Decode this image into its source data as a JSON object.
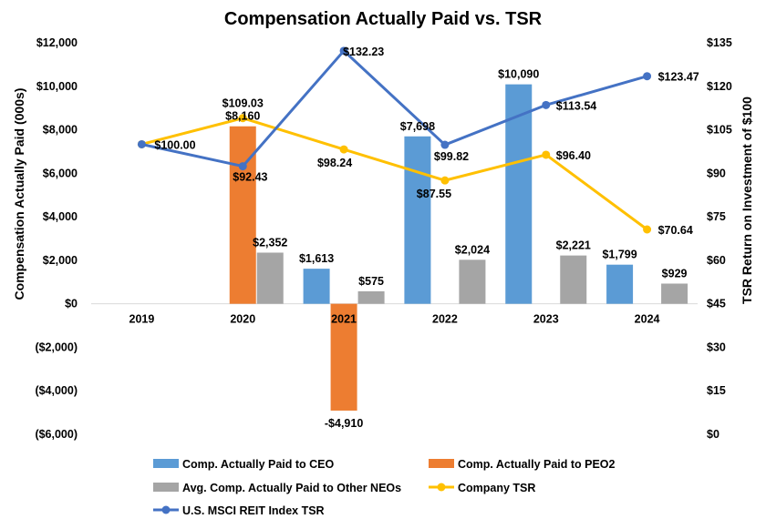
{
  "chart_data": {
    "type": "bar",
    "title": "Compensation Actually Paid vs. TSR",
    "categories": [
      "2019",
      "2020",
      "2021",
      "2022",
      "2023",
      "2024"
    ],
    "ylabel": "Compensation Actually Paid (000s)",
    "y2label": "TSR Return on Investment of $100",
    "ylim": [
      -6000,
      12000
    ],
    "y2lim": [
      0,
      135
    ],
    "y_ticks": [
      "$12,000",
      "$10,000",
      "$8,000",
      "$6,000",
      "$4,000",
      "$2,000",
      "$0",
      "($2,000)",
      "($4,000)",
      "($6,000)"
    ],
    "y2_ticks": [
      "$135",
      "$120",
      "$105",
      "$90",
      "$75",
      "$60",
      "$45",
      "$30",
      "$15",
      "$0"
    ],
    "bar_series": [
      {
        "name": "Comp. Actually Paid to CEO",
        "color": "#5b9bd5",
        "values": [
          null,
          null,
          1613,
          7698,
          10090,
          1799
        ],
        "labels": [
          null,
          null,
          "$1,613",
          "$7,698",
          "$10,090",
          "$1,799"
        ]
      },
      {
        "name": "Comp. Actually Paid to PEO2",
        "color": "#ed7d31",
        "values": [
          null,
          8160,
          -4910,
          null,
          null,
          null
        ],
        "labels": [
          null,
          "$8,160",
          "-$4,910",
          null,
          null,
          null
        ]
      },
      {
        "name": "Avg. Comp. Actually Paid to Other NEOs",
        "color": "#a5a5a5",
        "values": [
          null,
          2352,
          575,
          2024,
          2221,
          929
        ],
        "labels": [
          null,
          "$2,352",
          "$575",
          "$2,024",
          "$2,221",
          "$929"
        ]
      }
    ],
    "line_series": [
      {
        "name": "Company TSR",
        "color": "#ffc000",
        "values": [
          100.0,
          109.03,
          98.24,
          87.55,
          96.4,
          70.64
        ],
        "labels": [
          "$100.00",
          "$109.03",
          "$98.24",
          "$87.55",
          "$96.40",
          "$70.64"
        ]
      },
      {
        "name": "U.S. MSCI REIT Index TSR",
        "color": "#4472c4",
        "values": [
          100.0,
          92.43,
          132.23,
          99.82,
          113.54,
          123.47
        ],
        "labels": [
          null,
          "$92.43",
          "$132.23",
          "$99.82",
          "$113.54",
          "$123.47"
        ]
      }
    ],
    "legend": [
      {
        "name": "Comp. Actually Paid to CEO",
        "kind": "bar",
        "color": "#5b9bd5"
      },
      {
        "name": "Comp. Actually Paid to PEO2",
        "kind": "bar",
        "color": "#ed7d31"
      },
      {
        "name": "Avg. Comp. Actually Paid to Other NEOs",
        "kind": "bar",
        "color": "#a5a5a5"
      },
      {
        "name": "Company TSR",
        "kind": "line",
        "color": "#ffc000"
      },
      {
        "name": "U.S. MSCI REIT Index TSR",
        "kind": "line",
        "color": "#4472c4"
      }
    ],
    "legend_position": "bottom",
    "grid": false
  }
}
